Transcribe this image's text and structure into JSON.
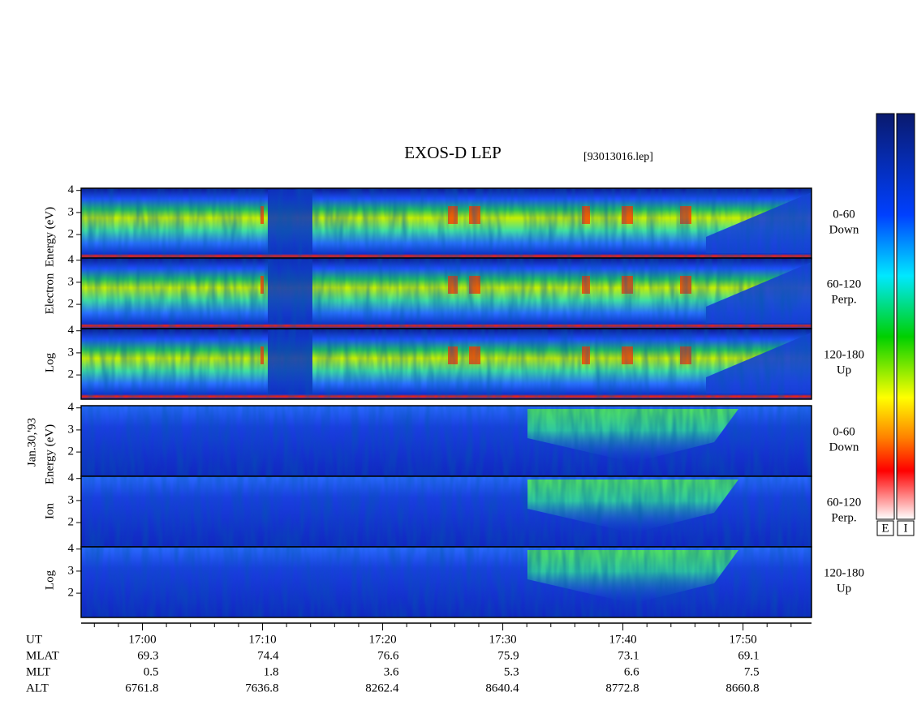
{
  "title": "EXOS-D LEP",
  "file": "[93013016.lep]",
  "chart_data": {
    "type": "spectrogram",
    "xlim": [
      1014.9,
      1075.7
    ],
    "xticks": [
      {
        "value": 1020,
        "label": "17:00"
      },
      {
        "value": 1030,
        "label": "17:10"
      },
      {
        "value": 1040,
        "label": "17:20"
      },
      {
        "value": 1050,
        "label": "17:30"
      },
      {
        "value": 1060,
        "label": "17:40"
      },
      {
        "value": 1070,
        "label": "17:50"
      }
    ],
    "xminorticks": [
      1016,
      1018,
      1022,
      1024,
      1026,
      1028,
      1032,
      1034,
      1036,
      1038,
      1042,
      1044,
      1046,
      1048,
      1052,
      1054,
      1056,
      1058,
      1062,
      1064,
      1066,
      1068,
      1072,
      1074
    ],
    "ylim": [
      0.9,
      4.1
    ],
    "yticks": [
      2,
      3,
      4
    ],
    "groups": [
      {
        "name": [
          "Log",
          "Electron",
          "Energy (eV)"
        ],
        "panels": [
          {
            "label": [
              "0-60",
              "Down"
            ]
          },
          {
            "label": [
              "60-120",
              "Perp."
            ]
          },
          {
            "label": [
              "120-180",
              "Up"
            ]
          }
        ]
      },
      {
        "name": [
          "Log",
          "Ion",
          "Energy (eV)"
        ],
        "panels": [
          {
            "label": [
              "0-60",
              "Down"
            ]
          },
          {
            "label": [
              "60-120",
              "Perp."
            ]
          },
          {
            "label": [
              "120-180",
              "Up"
            ]
          }
        ]
      }
    ],
    "date": "Jan.30,'93",
    "colorbar_labels": [
      "E",
      "I"
    ]
  },
  "ephemeris": {
    "ut_label": "UT",
    "rows": [
      {
        "name": "MLAT",
        "values": [
          69.3,
          74.4,
          76.6,
          75.9,
          73.1,
          69.1
        ]
      },
      {
        "name": "MLT",
        "values": [
          0.5,
          1.8,
          3.6,
          5.3,
          6.6,
          7.5
        ]
      },
      {
        "name": "ALT",
        "values": [
          6761.8,
          7636.8,
          8262.4,
          8640.4,
          8772.8,
          8660.8
        ]
      }
    ]
  }
}
